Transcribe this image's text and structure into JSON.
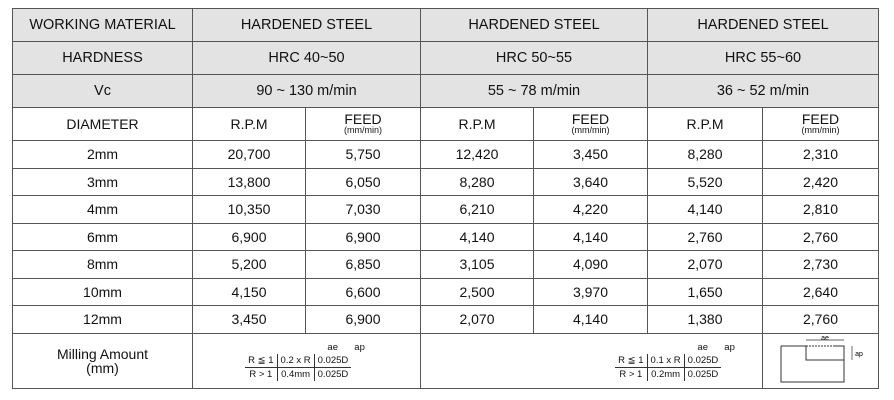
{
  "table": {
    "header_rows": [
      [
        "WORKING MATERIAL",
        "HARDENED STEEL",
        "HARDENED STEEL",
        "HARDENED STEEL"
      ],
      [
        "HARDNESS",
        "HRC 40~50",
        "HRC 50~55",
        "HRC 55~60"
      ],
      [
        "Vc",
        "90 ~ 130 m/min",
        "55 ~ 78 m/min",
        "36 ~ 52 m/min"
      ]
    ],
    "sub_header": [
      "DIAMETER",
      [
        "R.P.M"
      ],
      [
        "FEED",
        "(mm/min)"
      ],
      [
        "R.P.M"
      ],
      [
        "FEED",
        "(mm/min)"
      ],
      [
        "R.P.M"
      ],
      [
        "FEED",
        "(mm/min)"
      ]
    ],
    "rows": [
      [
        "2mm",
        "20,700",
        "5,750",
        "12,420",
        "3,450",
        "8,280",
        "2,310"
      ],
      [
        "3mm",
        "13,800",
        "6,050",
        "8,280",
        "3,640",
        "5,520",
        "2,420"
      ],
      [
        "4mm",
        "10,350",
        "7,030",
        "6,210",
        "4,220",
        "4,140",
        "2,810"
      ],
      [
        "6mm",
        "6,900",
        "6,900",
        "4,140",
        "4,140",
        "2,760",
        "2,760"
      ],
      [
        "8mm",
        "5,200",
        "6,850",
        "3,105",
        "4,090",
        "2,070",
        "2,730"
      ],
      [
        "10mm",
        "4,150",
        "6,600",
        "2,500",
        "3,970",
        "1,650",
        "2,640"
      ],
      [
        "12mm",
        "3,450",
        "6,900",
        "2,070",
        "4,140",
        "1,380",
        "2,760"
      ]
    ],
    "milling": {
      "label": [
        "Milling Amount",
        "(mm)"
      ],
      "columns": [
        "ae",
        "ap"
      ],
      "sets": [
        [
          [
            "R ≦ 1",
            "0.2 x R",
            "0.025D"
          ],
          [
            "R > 1",
            "0.4mm",
            "0.025D"
          ]
        ],
        [
          [
            "R ≦ 1",
            "0.1 x R",
            "0.025D"
          ],
          [
            "R > 1",
            "0.2mm",
            "0.025D"
          ]
        ]
      ],
      "diagram_labels": [
        "ae",
        "ap"
      ]
    }
  }
}
